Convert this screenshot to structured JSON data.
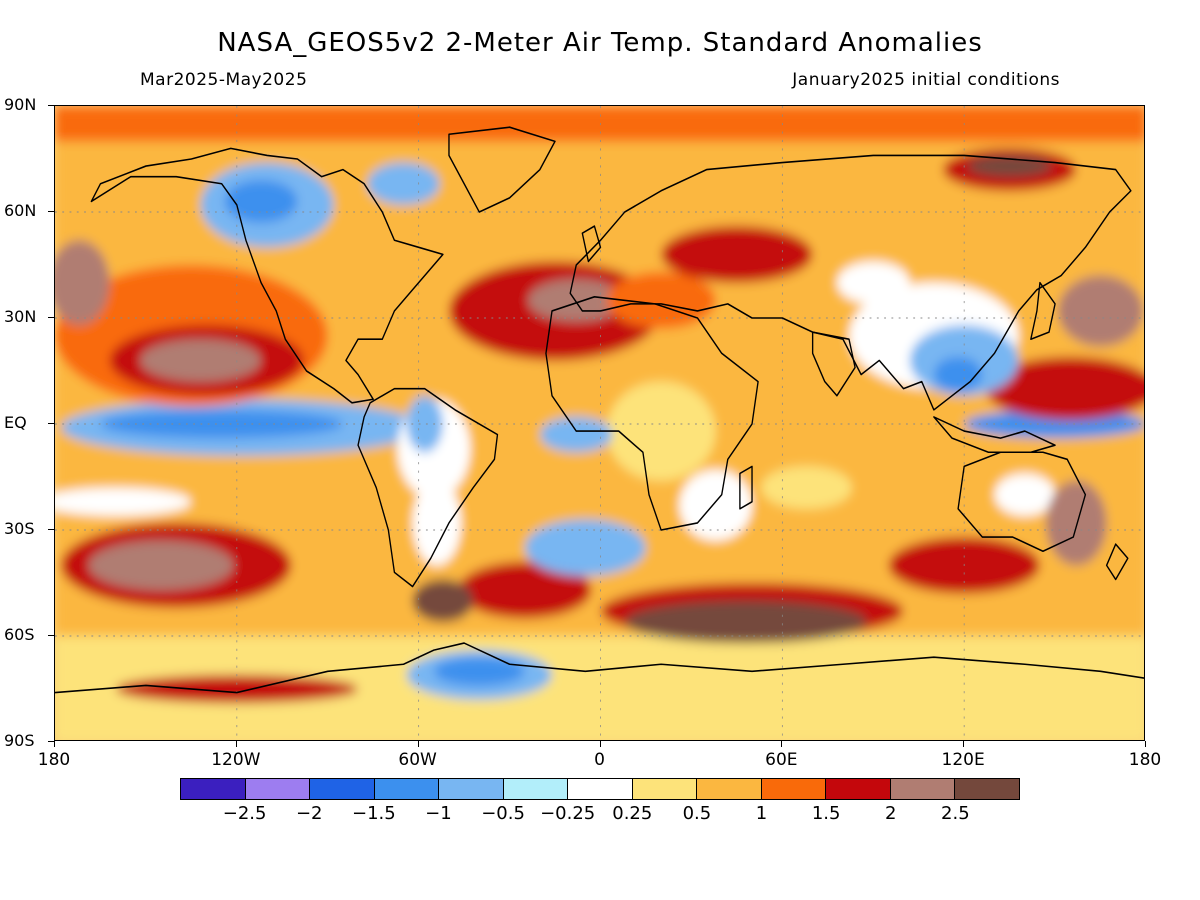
{
  "header": {
    "title": "NASA_GEOS5v2 2-Meter Air Temp. Standard Anomalies",
    "period": "Mar2025-May2025",
    "init": "January2025 initial conditions"
  },
  "axes": {
    "lat_labels": [
      "90N",
      "60N",
      "30N",
      "EQ",
      "30S",
      "60S",
      "90S"
    ],
    "lon_labels": [
      "180",
      "120W",
      "60W",
      "0",
      "60E",
      "120E",
      "180"
    ]
  },
  "colorbar": {
    "colors": [
      "#3b1fbf",
      "#9d7df0",
      "#1f63e6",
      "#3c90ee",
      "#78b6f2",
      "#b2eefa",
      "#ffffff",
      "#fde37a",
      "#fbb740",
      "#f96a0a",
      "#c4070c",
      "#b07d72",
      "#74483c"
    ],
    "labels": [
      "-2.5",
      "-2",
      "-1.5",
      "-1",
      "-0.5",
      "-0.25",
      "0.25",
      "0.5",
      "1",
      "1.5",
      "2",
      "2.5"
    ]
  },
  "map": {
    "projection": "equirectangular",
    "lat_range": [
      -90,
      90
    ],
    "lon_range": [
      -180,
      180
    ],
    "grid": "dotted lines every 30 degrees",
    "coastlines": true
  }
}
